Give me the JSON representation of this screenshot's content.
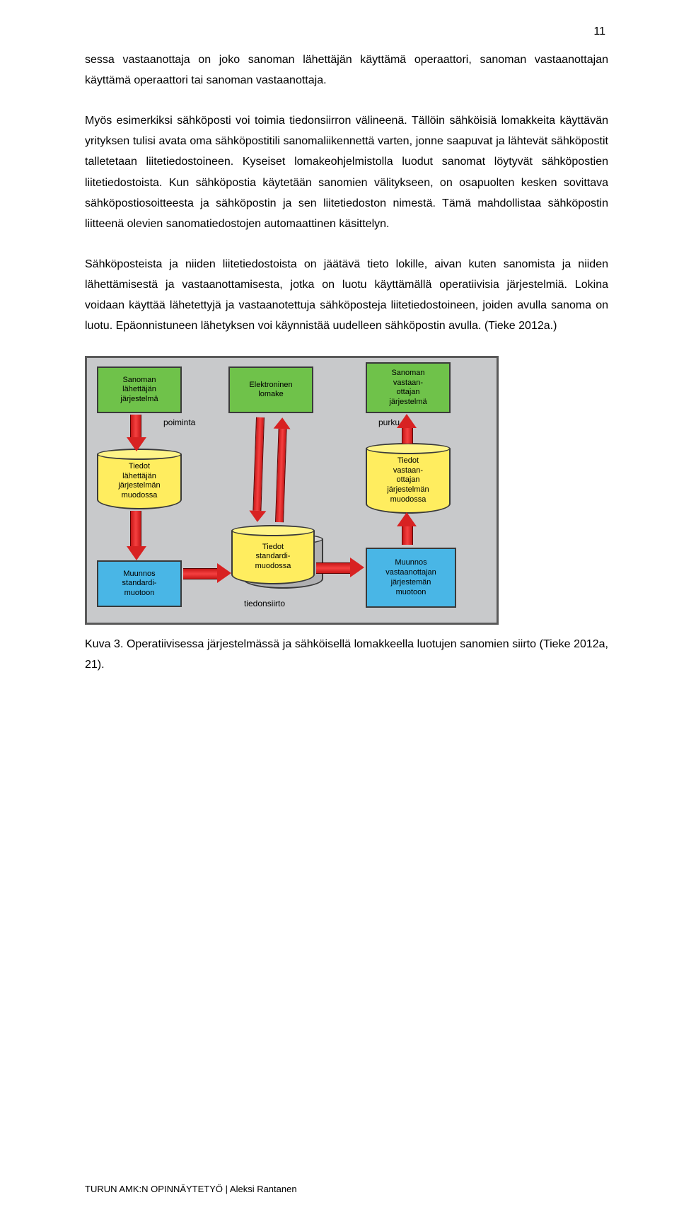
{
  "page_number": "11",
  "paragraphs": {
    "p1": "sessa vastaanottaja on joko sanoman lähettäjän käyttämä operaattori, sanoman vastaanottajan käyttämä operaattori tai sanoman vastaanottaja.",
    "p2": "Myös esimerkiksi sähköposti voi toimia tiedonsiirron välineenä. Tällöin sähköisiä lomakkeita käyttävän yrityksen tulisi avata oma sähköpostitili sanomaliikennettä varten, jonne saapuvat ja lähtevät sähköpostit talletetaan liitetiedostoineen. Kyseiset lomakeohjelmistolla luodut sanomat löytyvät sähköpostien liitetiedostoista. Kun sähköpostia käytetään sanomien välitykseen, on osapuolten kesken sovittava sähköpostiosoitteesta ja sähköpostin ja sen liitetiedoston nimestä. Tämä mahdollistaa sähköpostin liitteenä olevien sanomatiedostojen automaattinen käsittelyn.",
    "p3": "Sähköposteista ja niiden liitetiedostoista on jäätävä tieto lokille, aivan kuten sanomista ja niiden lähettämisestä ja vastaanottamisesta, jotka on luotu käyttämällä operatiivisia järjestelmiä. Lokina voidaan käyttää lähetettyjä ja vastaanotettuja sähköposteja liitetiedostoineen, joiden avulla sanoma on luotu. Epäonnistuneen lähetyksen voi käynnistää uudelleen sähköpostin avulla. (Tieke 2012a.)"
  },
  "caption": "Kuva 3. Operatiivisessa järjestelmässä ja sähköisellä lomakkeella luotujen sanomien siirto (Tieke 2012a, 21).",
  "footer": "TURUN AMK:N OPINNÄYTETYÖ | Aleksi Rantanen",
  "diagram": {
    "bg": "#c8c9cb",
    "colors": {
      "green": "#6fc24a",
      "yellow": "#ffed5f",
      "blue": "#49b6e6",
      "arrow": "#d82222"
    },
    "boxes": {
      "top1": "Sanoman\nlähettäjän\njärjestelmä",
      "top2": "Elektroninen\nlomake",
      "top3": "Sanoman\nvastaan-\nottajan\njärjestelmä",
      "cyl1": "Tiedot\nlähettäjän\njärjestelmän\nmuodossa",
      "cyl2": "Tiedot\nvastaan-\nottajan\njärjestelmän\nmuodossa",
      "cyl_c1": "Tiedot\nstandardi-\nmuodossa",
      "cyl_c2": "Tiedot\nstandardi-\nmuodossa",
      "bot1": "Muunnos\nstandardi-\nmuotoon",
      "bot2": "Muunnos\nvastaanottajan\njärjestemän\nmuotoon"
    },
    "labels": {
      "poiminta": "poiminta",
      "purku": "purku",
      "tiedonsiirto": "tiedonsiirto"
    }
  }
}
